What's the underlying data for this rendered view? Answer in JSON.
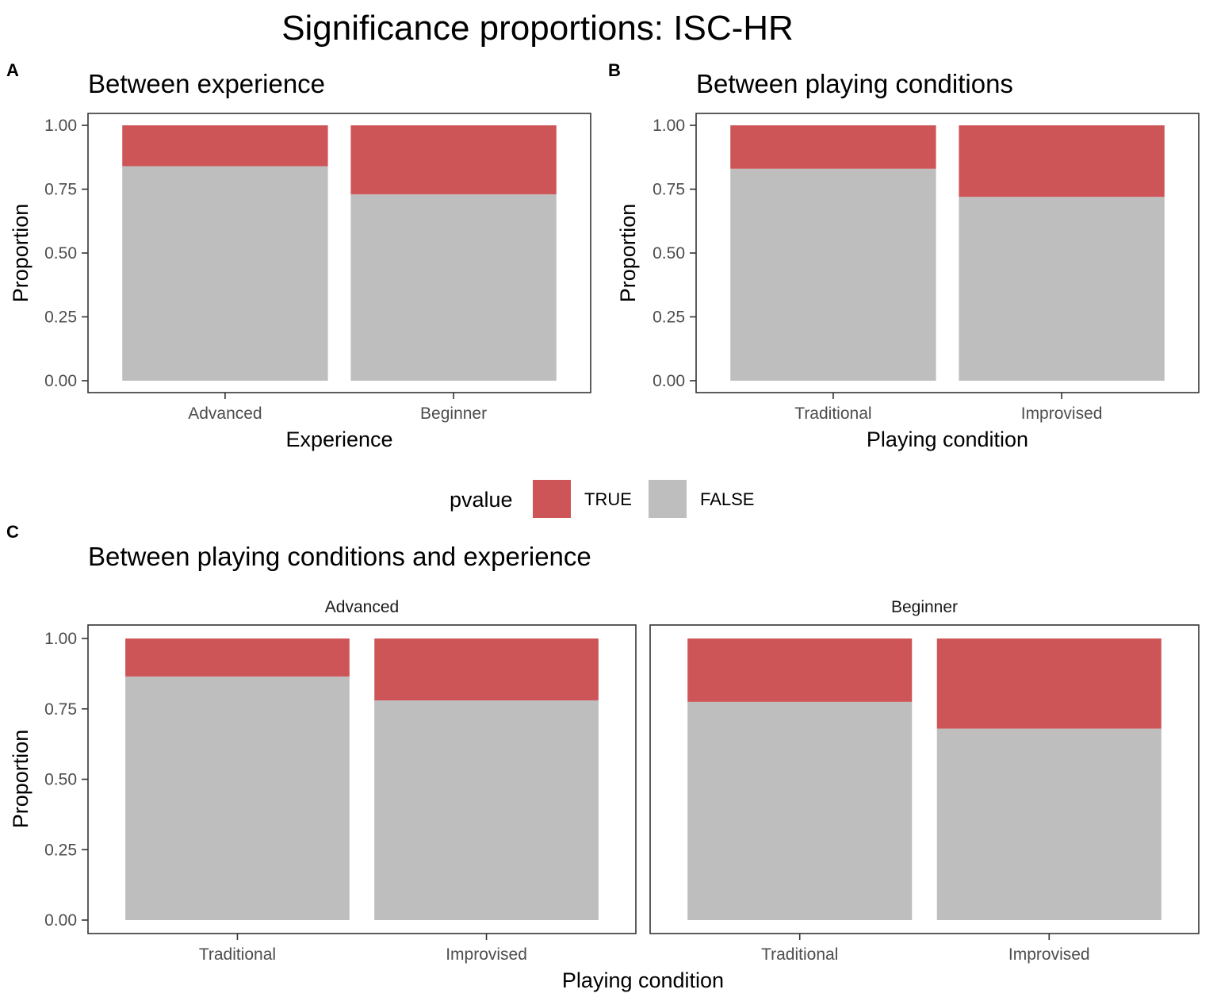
{
  "title": "Significance proportions: ISC-HR",
  "legend": {
    "title": "pvalue",
    "items": [
      {
        "label": "TRUE",
        "color": "#CD5557"
      },
      {
        "label": "FALSE",
        "color": "#BEBEBE"
      }
    ]
  },
  "chart_data": [
    {
      "type": "bar",
      "panel_label": "A",
      "title": "Between experience",
      "xlabel": "Experience",
      "ylabel": "Proportion",
      "ylim": [
        0,
        1
      ],
      "yticks": [
        "0.00",
        "0.25",
        "0.50",
        "0.75",
        "1.00"
      ],
      "facets": [
        {
          "strip": "",
          "categories": [
            "Advanced",
            "Beginner"
          ],
          "series": [
            {
              "name": "FALSE",
              "values": [
                0.84,
                0.73
              ]
            },
            {
              "name": "TRUE",
              "values": [
                0.16,
                0.27
              ]
            }
          ]
        }
      ]
    },
    {
      "type": "bar",
      "panel_label": "B",
      "title": "Between playing conditions",
      "xlabel": "Playing condition",
      "ylabel": "Proportion",
      "ylim": [
        0,
        1
      ],
      "yticks": [
        "0.00",
        "0.25",
        "0.50",
        "0.75",
        "1.00"
      ],
      "facets": [
        {
          "strip": "",
          "categories": [
            "Traditional",
            "Improvised"
          ],
          "series": [
            {
              "name": "FALSE",
              "values": [
                0.83,
                0.72
              ]
            },
            {
              "name": "TRUE",
              "values": [
                0.17,
                0.28
              ]
            }
          ]
        }
      ]
    },
    {
      "type": "bar",
      "panel_label": "C",
      "title": "Between playing conditions and experience",
      "xlabel": "Playing condition",
      "ylabel": "Proportion",
      "ylim": [
        0,
        1
      ],
      "yticks": [
        "0.00",
        "0.25",
        "0.50",
        "0.75",
        "1.00"
      ],
      "facets": [
        {
          "strip": "Advanced",
          "categories": [
            "Traditional",
            "Improvised"
          ],
          "series": [
            {
              "name": "FALSE",
              "values": [
                0.865,
                0.78
              ]
            },
            {
              "name": "TRUE",
              "values": [
                0.135,
                0.22
              ]
            }
          ]
        },
        {
          "strip": "Beginner",
          "categories": [
            "Traditional",
            "Improvised"
          ],
          "series": [
            {
              "name": "FALSE",
              "values": [
                0.775,
                0.68
              ]
            },
            {
              "name": "TRUE",
              "values": [
                0.225,
                0.32
              ]
            }
          ]
        }
      ]
    }
  ]
}
